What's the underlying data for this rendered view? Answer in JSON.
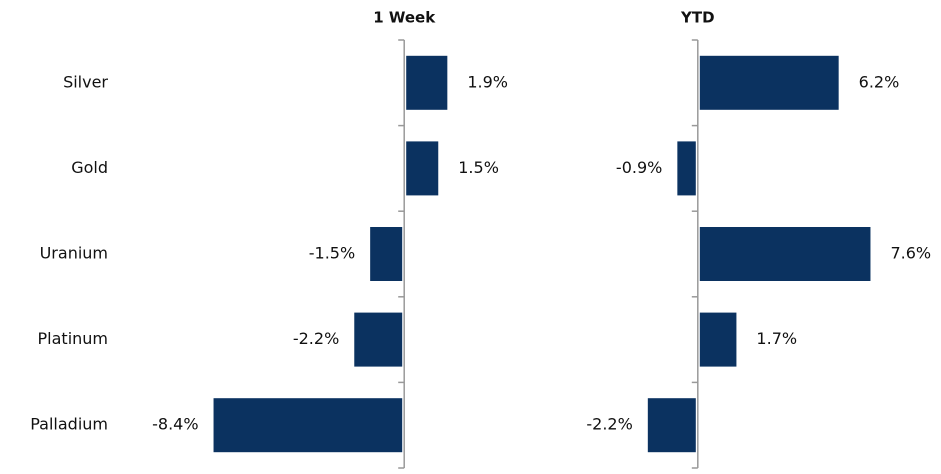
{
  "chart_data": [
    {
      "type": "bar",
      "orientation": "horizontal",
      "title": "1 Week",
      "categories": [
        "Silver",
        "Gold",
        "Uranium",
        "Platinum",
        "Palladium"
      ],
      "values": [
        1.9,
        1.5,
        -1.5,
        -2.2,
        -8.4
      ],
      "value_labels": [
        "1.9%",
        "1.5%",
        "-1.5%",
        "-2.2%",
        "-8.4%"
      ],
      "color": "#0b3260",
      "xlim": [
        -8.6,
        4.0
      ]
    },
    {
      "type": "bar",
      "orientation": "horizontal",
      "title": "YTD",
      "values": [
        6.2,
        -0.9,
        7.6,
        1.7,
        -2.2
      ],
      "value_labels": [
        "6.2%",
        "-0.9%",
        "7.6%",
        "1.7%",
        "-2.2%"
      ],
      "color": "#0b3260",
      "xlim": [
        -2.5,
        10.0
      ]
    }
  ]
}
